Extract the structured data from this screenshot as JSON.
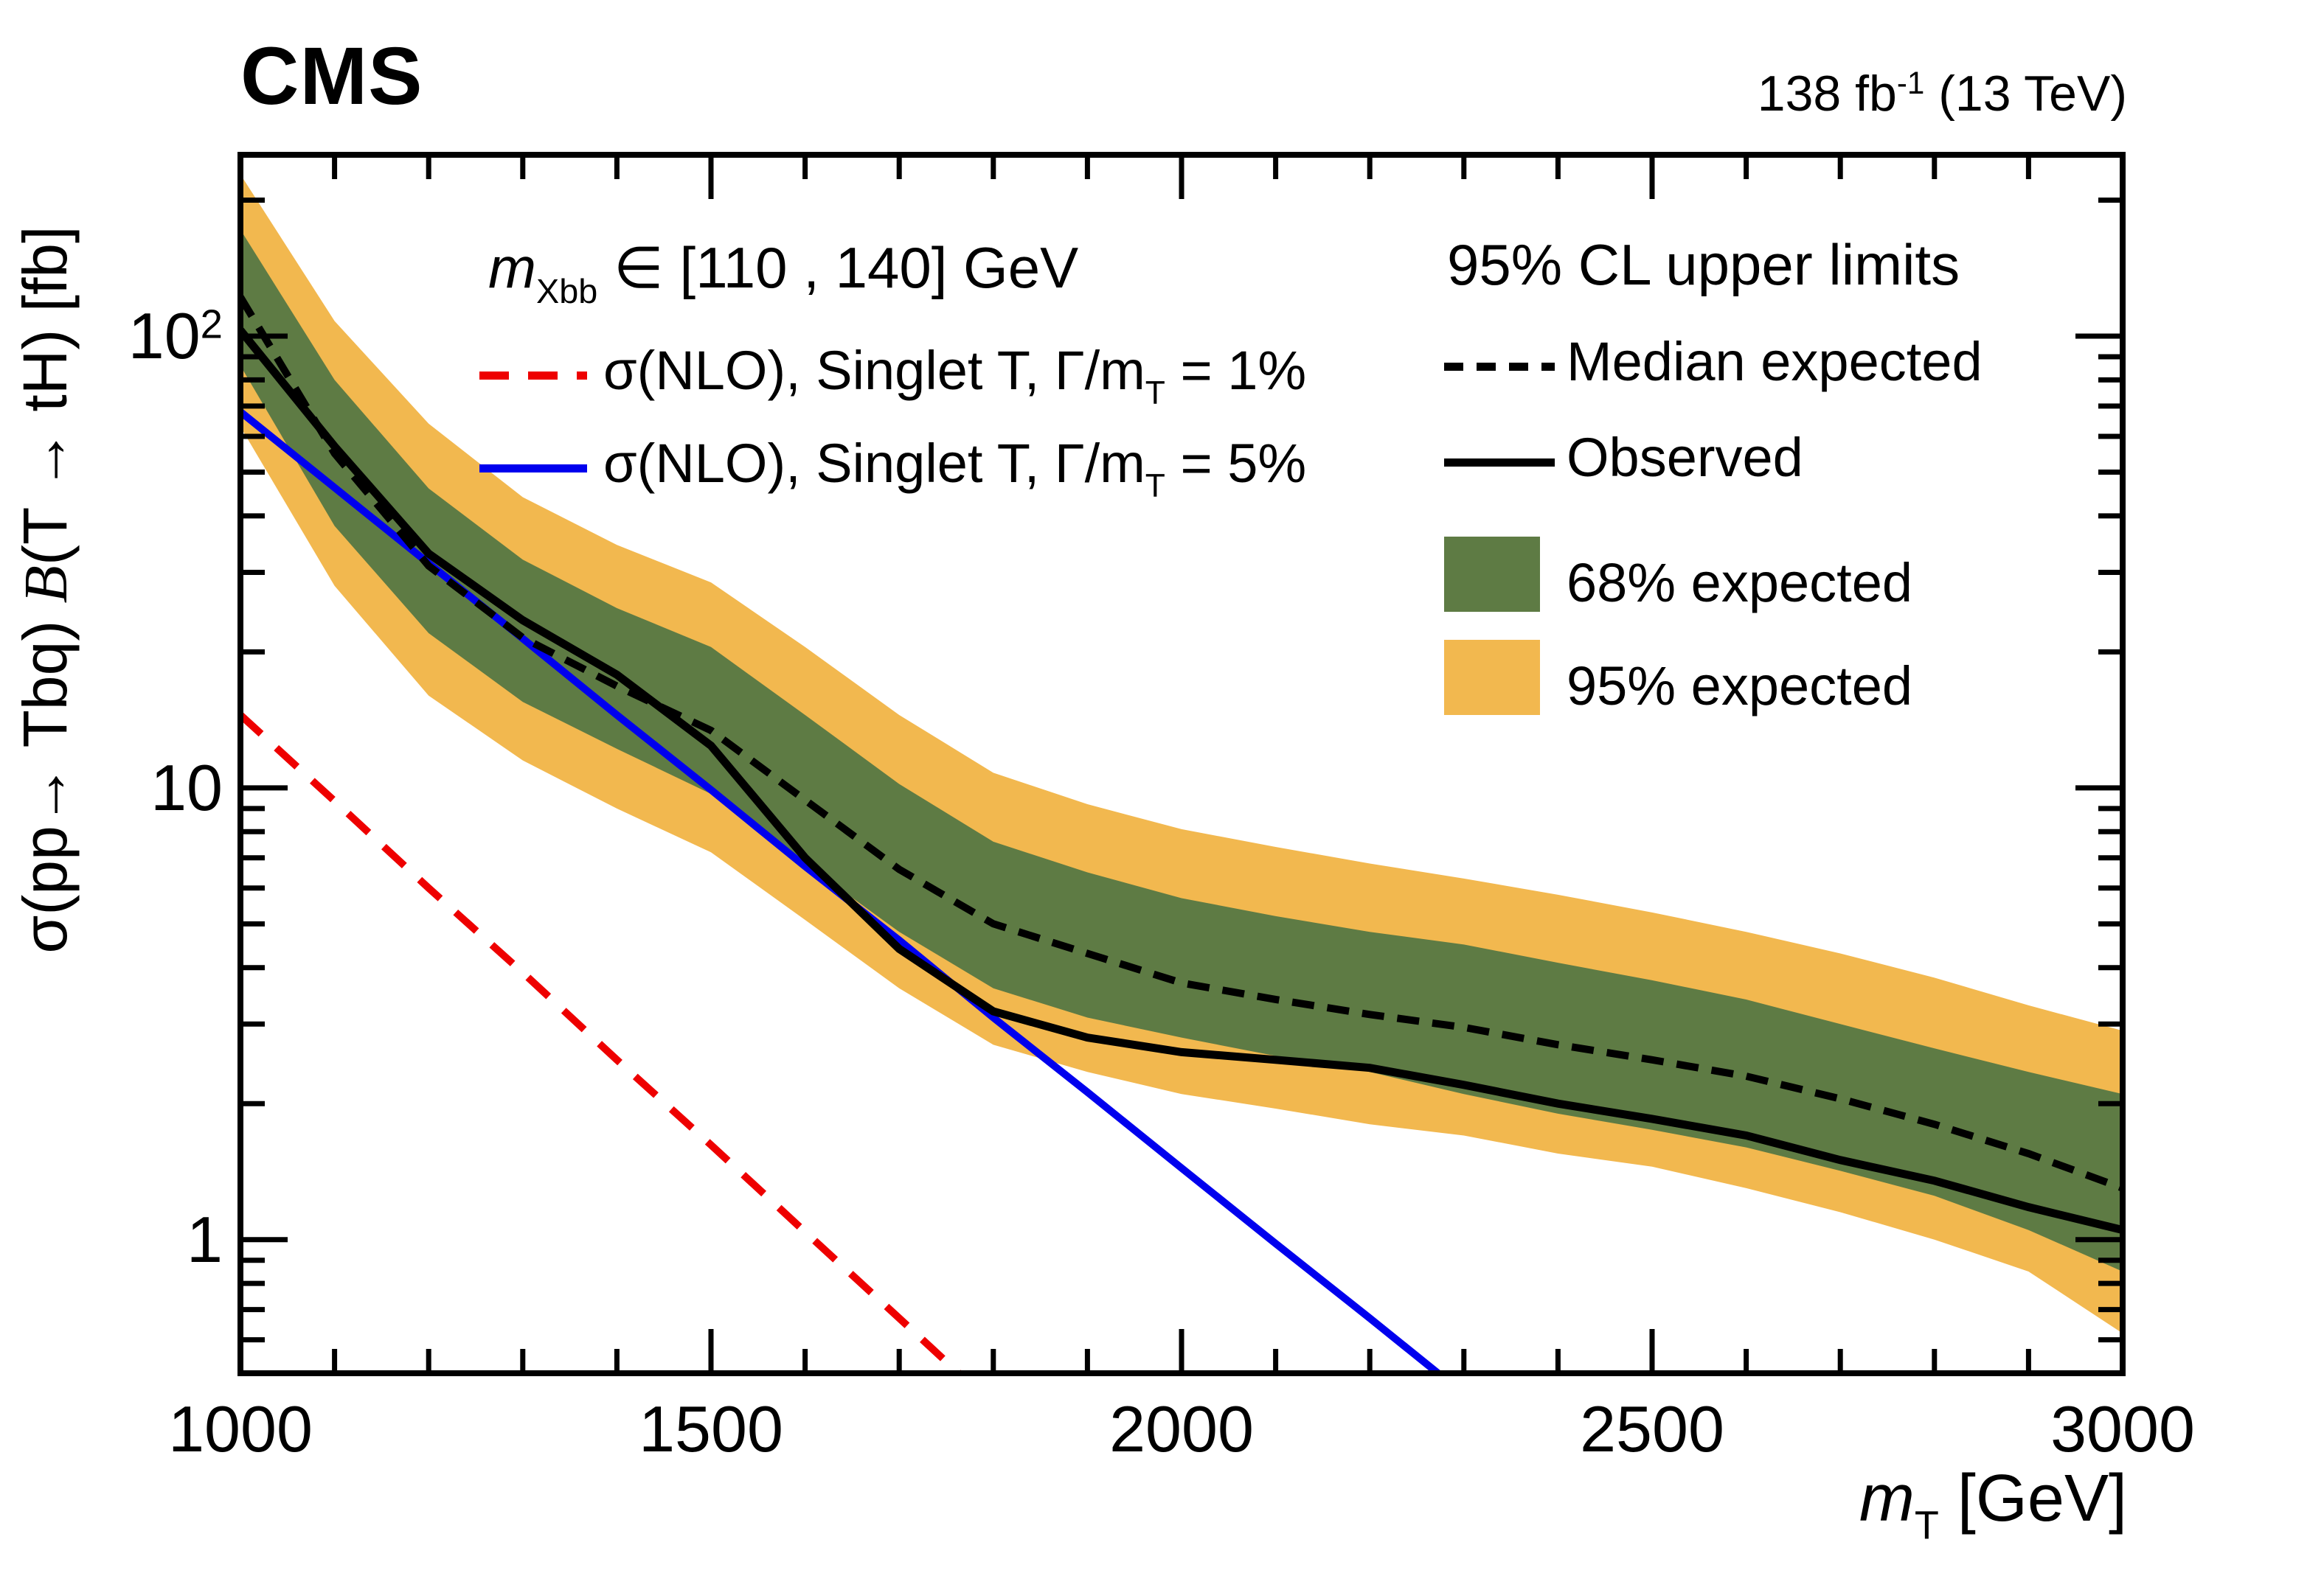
{
  "header": {
    "experiment": "CMS",
    "lumi_prefix": "138 fb",
    "lumi_sup": "-1",
    "lumi_suffix": " (13 TeV)"
  },
  "axes": {
    "x": {
      "label_main": "m",
      "label_sub": "T",
      "label_unit": " [GeV]",
      "min": 1000,
      "max": 3000,
      "major_ticks": [
        1000,
        1500,
        2000,
        2500,
        3000
      ],
      "tick_labels": [
        "1000",
        "1500",
        "2000",
        "2500",
        "3000"
      ],
      "minor_step": 100
    },
    "y": {
      "label_p1": "σ(pp→ Tbq) ",
      "label_B": "B",
      "label_p2": "(T → tH) [fb]",
      "scale": "log",
      "min": 0.506,
      "max": 252,
      "major_ticks": [
        1,
        10,
        100
      ],
      "tick_labels": [
        {
          "base": "1",
          "exp": ""
        },
        {
          "base": "10",
          "exp": ""
        },
        {
          "base": "10",
          "exp": "2"
        }
      ]
    }
  },
  "legend_left": {
    "header_m": "m",
    "header_sub": "Xbb",
    "header_rest": " ∈ [110 , 140]  GeV",
    "rows": [
      {
        "p1": "σ(NLO), Singlet T, Γ/m",
        "sub": "T",
        "p2": " = 1%"
      },
      {
        "p1": "σ(NLO), Singlet T, Γ/m",
        "sub": "T",
        "p2": " = 5%"
      }
    ]
  },
  "legend_right": {
    "title": "95% CL upper limits",
    "median_label": "Median expected",
    "observed_label": "Observed",
    "band68_label": "68% expected",
    "band95_label": "95% expected"
  },
  "colors": {
    "band68": "#5e7b44",
    "band95": "#f2b84f",
    "observed": "#000000",
    "median": "#000000",
    "theory_1pct": "#ee0000",
    "theory_5pct": "#0000ee",
    "frame": "#000000"
  },
  "chart_data": {
    "type": "line",
    "title": "95% CL upper limits on σ(pp→ Tbq) B(T → tH)",
    "xlabel": "m_T [GeV]",
    "ylabel": "σ(pp→ Tbq) B(T → tH) [fb]",
    "x_range": [
      1000,
      3000
    ],
    "y_range": [
      0.506,
      252
    ],
    "y_scale": "log",
    "grid": false,
    "legend_position": "top",
    "masses": [
      1000,
      1100,
      1200,
      1300,
      1400,
      1500,
      1600,
      1700,
      1800,
      1900,
      2000,
      2100,
      2200,
      2300,
      2400,
      2500,
      2600,
      2700,
      2800,
      2900,
      3000
    ],
    "series": [
      {
        "name": "Median expected",
        "style": "dashed-black",
        "values": [
          122,
          55,
          31,
          21.5,
          16.8,
          13.4,
          9.4,
          6.6,
          5.0,
          4.3,
          3.7,
          3.4,
          3.15,
          2.95,
          2.7,
          2.5,
          2.3,
          2.05,
          1.8,
          1.55,
          1.3
        ]
      },
      {
        "name": "Observed",
        "style": "solid-black",
        "values": [
          103,
          57,
          33,
          23.5,
          17.8,
          12.4,
          7.0,
          4.4,
          3.2,
          2.8,
          2.6,
          2.5,
          2.4,
          2.2,
          2.0,
          1.85,
          1.7,
          1.5,
          1.35,
          1.18,
          1.05
        ]
      }
    ],
    "bands": [
      {
        "name": "68% expected",
        "upper": [
          172,
          80,
          46,
          32,
          25,
          20.5,
          14.5,
          10.2,
          7.6,
          6.5,
          5.7,
          5.2,
          4.8,
          4.5,
          4.1,
          3.75,
          3.4,
          3.0,
          2.65,
          2.35,
          2.1
        ],
        "lower": [
          86,
          38,
          22,
          15.5,
          12.2,
          9.7,
          6.8,
          4.8,
          3.6,
          3.1,
          2.8,
          2.55,
          2.35,
          2.1,
          1.9,
          1.75,
          1.6,
          1.42,
          1.25,
          1.05,
          0.85
        ]
      },
      {
        "name": "95% expected",
        "upper": [
          228,
          108,
          64,
          44,
          34.5,
          28.5,
          20.5,
          14.5,
          10.8,
          9.2,
          8.1,
          7.4,
          6.8,
          6.3,
          5.8,
          5.3,
          4.8,
          4.3,
          3.8,
          3.3,
          2.9
        ],
        "lower": [
          63,
          28,
          16,
          11.5,
          9.0,
          7.2,
          5.1,
          3.6,
          2.7,
          2.35,
          2.1,
          1.95,
          1.8,
          1.7,
          1.55,
          1.45,
          1.3,
          1.15,
          1.0,
          0.85,
          0.62
        ]
      }
    ],
    "theory_curves": [
      {
        "name": "σ(NLO), Singlet T, Γ/m_T = 1%",
        "style": "dashed-red",
        "x": [
          1000,
          1100,
          1200,
          1300,
          1400,
          1500,
          1600,
          1700,
          1800
        ],
        "values": [
          14.5,
          9.35,
          6.0,
          3.9,
          2.5,
          1.62,
          1.04,
          0.67,
          0.43
        ]
      },
      {
        "name": "σ(NLO), Singlet T, Γ/m_T = 5%",
        "style": "solid-blue",
        "x": [
          1000,
          1100,
          1200,
          1300,
          1400,
          1500,
          1600,
          1700,
          1800,
          1900,
          2000,
          2100,
          2200,
          2300
        ],
        "values": [
          68,
          46.2,
          31.4,
          21.4,
          14.5,
          9.9,
          6.7,
          4.6,
          3.1,
          2.12,
          1.44,
          0.98,
          0.67,
          0.455
        ]
      }
    ]
  }
}
